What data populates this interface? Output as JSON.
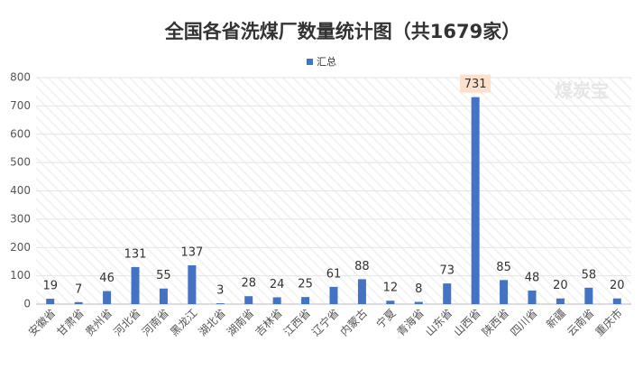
{
  "chart_data": {
    "type": "bar",
    "title": "全国各省洗煤厂数量统计图（共1679家）",
    "watermark": "煤炭宝",
    "series": [
      {
        "name": "汇总",
        "color": "#4472c4",
        "values": [
          19,
          7,
          46,
          131,
          55,
          137,
          3,
          28,
          24,
          25,
          61,
          88,
          12,
          8,
          73,
          731,
          85,
          48,
          20,
          58,
          20
        ]
      }
    ],
    "categories": [
      "安徽省",
      "甘肃省",
      "贵州省",
      "河北省",
      "河南省",
      "黑龙江",
      "湖北省",
      "湖南省",
      "吉林省",
      "江西省",
      "辽宁省",
      "内蒙古",
      "宁夏",
      "青海省",
      "山东省",
      "山西省",
      "陕西省",
      "四川省",
      "新疆",
      "云南省",
      "重庆市"
    ],
    "ylim": [
      0,
      800
    ],
    "yticks": [
      0,
      100,
      200,
      300,
      400,
      500,
      600,
      700,
      800
    ],
    "grid": true,
    "legend": "top"
  }
}
